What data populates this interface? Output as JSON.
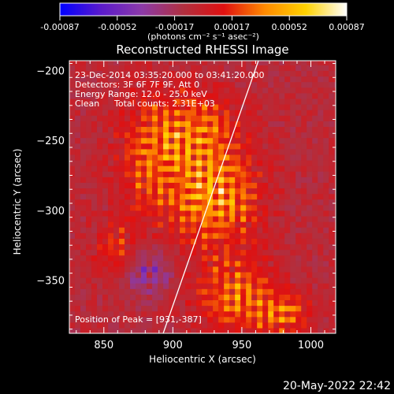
{
  "chart_data": {
    "type": "heatmap",
    "title": "Reconstructed RHESSI Image",
    "xlabel": "Heliocentric X (arcsec)",
    "ylabel": "Heliocentric Y (arcsec)",
    "xlim": [
      825,
      1018
    ],
    "ylim": [
      -388,
      -193
    ],
    "x_ticks": [
      850,
      900,
      950,
      1000
    ],
    "y_ticks": [
      -200,
      -250,
      -300,
      -350
    ],
    "colorbar": {
      "ticks": [
        "-0.00087",
        "-0.00052",
        "-0.00017",
        "0.00017",
        "0.00052",
        "0.00087"
      ],
      "unit_label": "(photons cm⁻² s⁻¹ asec⁻²)",
      "range": [
        -0.00087,
        0.00087
      ],
      "colors": [
        "#0000ff",
        "#5a1acb",
        "#8c3aa8",
        "#b03040",
        "#e01010",
        "#ff8a00",
        "#ffd200",
        "#ffffff"
      ]
    },
    "annotations": {
      "time": "23-Dec-2014 03:35:20.000 to 03:41:20.000",
      "detectors": "Detectors: 3F 6F 7F 9F, Att 0",
      "energy": "Energy Range: 12.0 - 25.0 keV",
      "clean": "Clean",
      "counts": "Total counts: 2.31E+03",
      "peak": "Position of Peak = [931,-387]"
    },
    "peak": [
      931,
      -387
    ],
    "limb_line": [
      [
        893,
        -388
      ],
      [
        962,
        -193
      ]
    ],
    "sources": [
      {
        "x": 930,
        "y": -290,
        "amp": 0.00087,
        "sx": 22,
        "sy": 24
      },
      {
        "x": 885,
        "y": -260,
        "amp": 0.0006,
        "sx": 18,
        "sy": 28
      },
      {
        "x": 920,
        "y": -240,
        "amp": 0.00055,
        "sx": 20,
        "sy": 18
      },
      {
        "x": 945,
        "y": -360,
        "amp": 0.00065,
        "sx": 20,
        "sy": 18
      },
      {
        "x": 980,
        "y": -375,
        "amp": 0.0006,
        "sx": 14,
        "sy": 10
      },
      {
        "x": 860,
        "y": -330,
        "amp": 0.0004,
        "sx": 12,
        "sy": 16
      }
    ],
    "negative_region": {
      "x": 880,
      "y": -345,
      "amp": -0.0005,
      "sx": 14,
      "sy": 12
    }
  },
  "footer": {
    "date": "20-May-2022 22:42"
  }
}
